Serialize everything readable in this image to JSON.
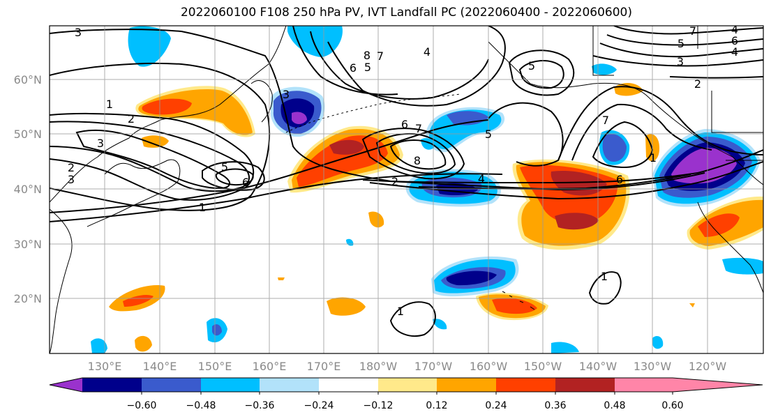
{
  "title": "2022060100 F108 250 hPa PV, IVT Landfall PC (2022060400 - 2022060600)",
  "lat_labels": [
    "60°N",
    "50°N",
    "40°N",
    "30°N",
    "20°N"
  ],
  "lon_labels": [
    "130°E",
    "140°E",
    "150°E",
    "160°E",
    "170°E",
    "180°W",
    "170°W",
    "160°W",
    "150°W",
    "140°W",
    "130°W",
    "120°W"
  ],
  "colorbar": {
    "ticks": [
      "−0.60",
      "−0.48",
      "−0.36",
      "−0.24",
      "−0.12",
      "0.12",
      "0.24",
      "0.36",
      "0.48",
      "0.60"
    ],
    "colors": [
      "#9a32cd",
      "#00008b",
      "#3a5bcd",
      "#00bfff",
      "#b2e2fa",
      "#ffffff",
      "#ffe98a",
      "#ffa500",
      "#ff4000",
      "#b22222",
      "#ff85a8"
    ]
  },
  "contour_labels": [
    "3",
    "1",
    "2",
    "2",
    "3",
    "3",
    "5",
    "6",
    "1",
    "6",
    "8",
    "7",
    "4",
    "5",
    "6",
    "7",
    "8",
    "5",
    "2",
    "4",
    "5",
    "7",
    "6",
    "1",
    "3",
    "4",
    "7",
    "6",
    "5",
    "4",
    "3",
    "2",
    "1",
    "1"
  ]
}
